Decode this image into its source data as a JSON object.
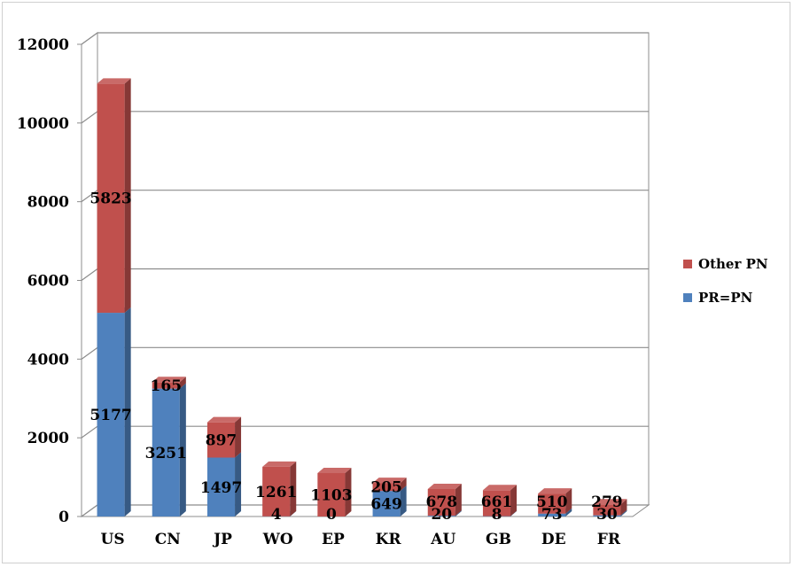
{
  "chart_data": {
    "type": "bar",
    "stacked": true,
    "three_d": true,
    "categories": [
      "US",
      "CN",
      "JP",
      "WO",
      "EP",
      "KR",
      "AU",
      "GB",
      "DE",
      "FR"
    ],
    "series": [
      {
        "name": "PR=PN",
        "values": [
          5177,
          3251,
          1497,
          4,
          0,
          649,
          20,
          8,
          73,
          30
        ],
        "color": "#4f81bd"
      },
      {
        "name": "Other PN",
        "values": [
          5823,
          165,
          897,
          1261,
          1103,
          205,
          678,
          661,
          510,
          279
        ],
        "color": "#c0504d"
      }
    ],
    "data_labels": {
      "PR=PN": [
        "5177",
        "3251",
        "1497",
        "4",
        "0",
        "649",
        "20",
        "8",
        "73",
        "30"
      ],
      "Other PN": [
        "5823",
        "165",
        "897",
        "1261",
        "1103",
        "205",
        "678",
        "661",
        "510",
        "279"
      ]
    },
    "y_ticks": [
      "0",
      "2000",
      "4000",
      "6000",
      "8000",
      "10000",
      "12000"
    ],
    "ylim": [
      0,
      12000
    ],
    "grid": true,
    "legend_position": "right",
    "legend_order": [
      "Other PN",
      "PR=PN"
    ],
    "wall_color": "#ffffff",
    "grid_color": "#8c8c8c"
  }
}
